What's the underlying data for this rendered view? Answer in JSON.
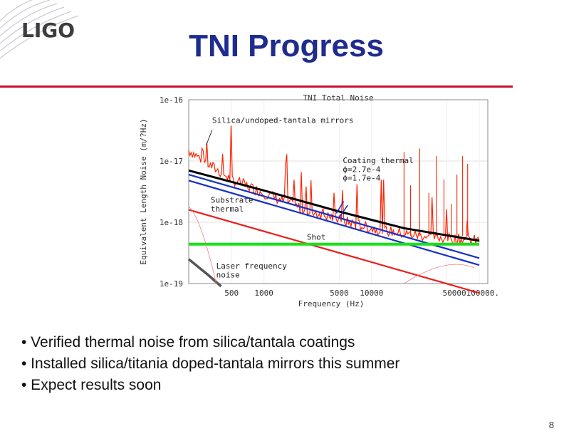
{
  "logo": {
    "text": "LIGO"
  },
  "title": "TNI Progress",
  "bullets": [
    "• Verified thermal noise from silica/tantala coatings",
    "• Installed silica/titania doped-tantala mirrors this summer",
    "• Expect results soon"
  ],
  "page_number": "8",
  "colors": {
    "title": "#1f2c8f",
    "rule": "#c8102e",
    "measured": "#ff2200",
    "coating": "#1530c8",
    "substrate": "#e82020",
    "shot": "#19e019",
    "total": "#000000",
    "laser": "#555555"
  },
  "chart_data": {
    "type": "line",
    "title": "TNI Total Noise",
    "xlabel": "Frequency (Hz)",
    "ylabel": "Equivalent Length Noise (m/?Hz)",
    "xscale": "log",
    "yscale": "log",
    "xlim": [
      200,
      120000
    ],
    "ylim": [
      1e-19,
      1e-16
    ],
    "x_tick_labels": [
      "500",
      "1000",
      "5000",
      "10000",
      "50000100000."
    ],
    "y_tick_labels": [
      "1e-16",
      "1e-17",
      "1e-18",
      "1e-19"
    ],
    "series": [
      {
        "name": "Silica/undoped-tantala mirrors",
        "kind": "measured",
        "x": [
          200,
          300,
          500,
          1000,
          2000,
          5000,
          10000,
          20000,
          50000,
          100000
        ],
        "y": [
          1.5e-17,
          9e-18,
          5e-18,
          3e-18,
          1.8e-18,
          1.1e-18,
          8e-19,
          6.5e-19,
          5.5e-19,
          5e-19
        ]
      },
      {
        "name": "Coating thermal ϕ=2.7e-4",
        "kind": "model",
        "x": [
          200,
          100000
        ],
        "y": [
          6e-18,
          2.6e-19
        ]
      },
      {
        "name": "Coating thermal ϕ=1.7e-4",
        "kind": "model",
        "x": [
          200,
          100000
        ],
        "y": [
          4.8e-18,
          2e-19
        ]
      },
      {
        "name": "Substrate thermal",
        "kind": "model",
        "x": [
          200,
          100000
        ],
        "y": [
          1.6e-18,
          7e-20
        ]
      },
      {
        "name": "Shot",
        "kind": "model",
        "x": [
          200,
          100000
        ],
        "y": [
          4.4e-19,
          4.4e-19
        ]
      },
      {
        "name": "Total",
        "kind": "model",
        "x": [
          200,
          1000,
          5000,
          20000,
          100000
        ],
        "y": [
          7e-18,
          3.3e-18,
          1.5e-18,
          8e-19,
          5e-19
        ]
      },
      {
        "name": "Laser frequency noise",
        "kind": "model",
        "x": [
          200,
          300,
          400
        ],
        "y": [
          2.5e-19,
          1.4e-19,
          9e-20
        ]
      }
    ],
    "annotations": [
      "Silica/undoped-tantala mirrors",
      "Coating thermal",
      "ϕ=2.7e-4",
      "ϕ=1.7e-4",
      "Substrate",
      "thermal",
      "Shot",
      "Laser frequency",
      "noise"
    ]
  }
}
